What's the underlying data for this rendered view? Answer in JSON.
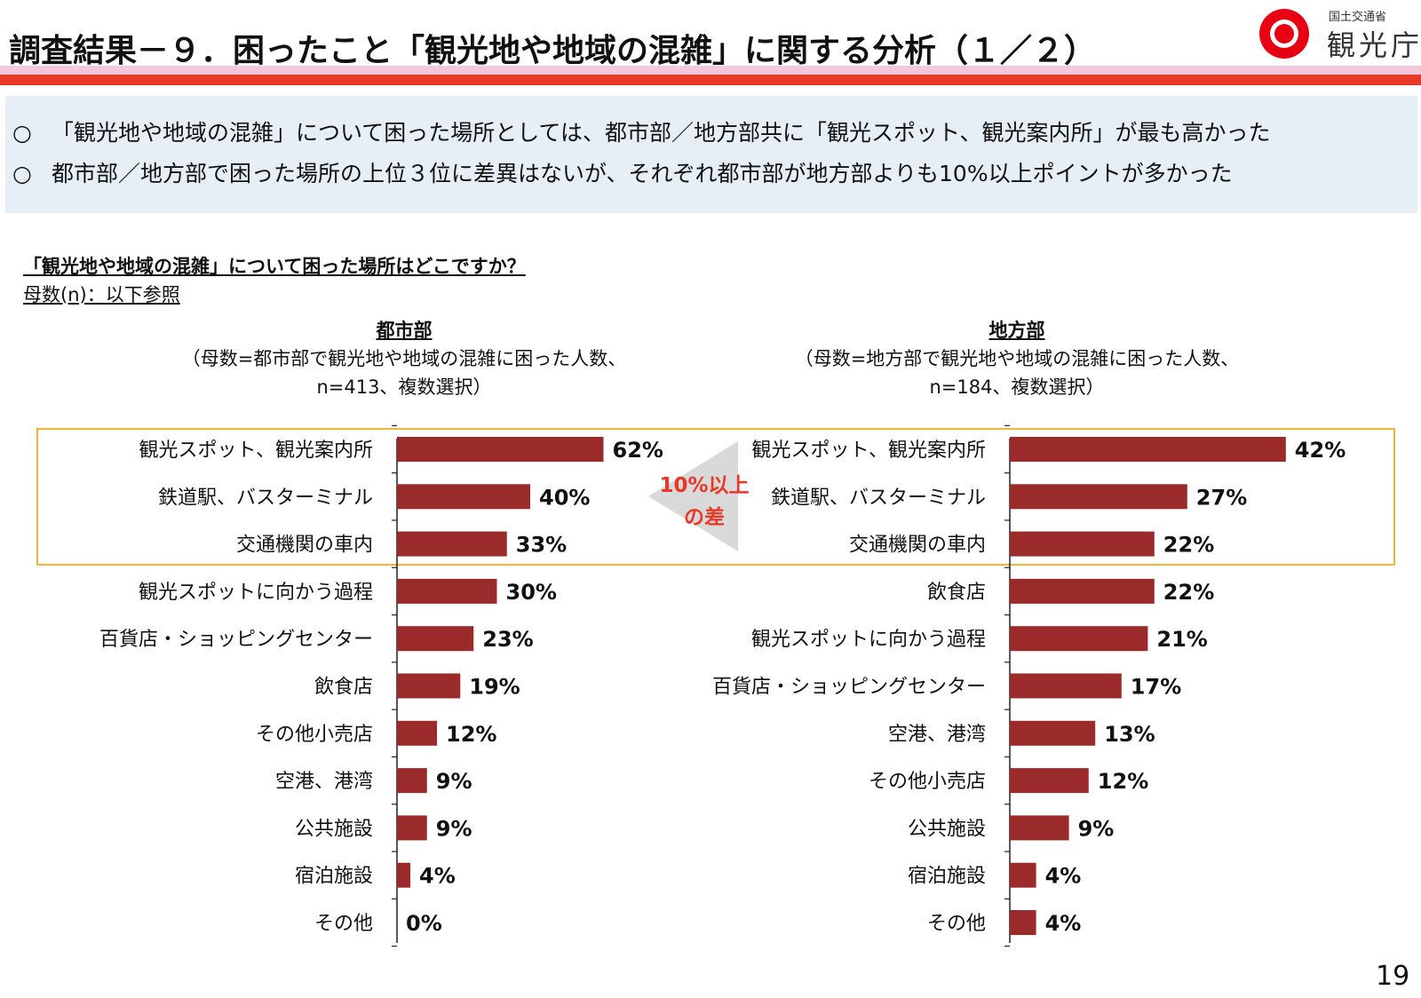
{
  "header": {
    "title": "調査結果－９．困ったこと「観光地や地域の混雑」に関する分析（１／２）",
    "logo": {
      "ministry": "国土交通省",
      "name": "観光庁",
      "icon": "japan-tourism-agency-logo-icon"
    }
  },
  "summary": {
    "bullet": "○",
    "lines": [
      "「観光地や地域の混雑」について困った場所としては、都市部／地方部共に「観光スポット、観光案内所」が最も高かった",
      "都市部／地方部で困った場所の上位３位に差異はないが、それぞれ都市部が地方部よりも10%以上ポイントが多かった"
    ]
  },
  "question": "「観光地や地域の混雑」について困った場所はどこですか？",
  "base_note": "母数(n)：以下参照",
  "annotation": {
    "line1": "10%以上",
    "line2": "の差"
  },
  "page_number": "19",
  "colors": {
    "bar": "#9b2a2a",
    "highlight": "#f2b535",
    "annotation": "#e83828",
    "arrow": "#d9d9d9",
    "title_bar": "#e83828"
  },
  "chart_data": [
    {
      "type": "bar",
      "orientation": "horizontal",
      "title": "都市部",
      "subtitle_line1": "（母数=都市部で観光地や地域の混雑に困った人数、",
      "subtitle_line2": "n=413、複数選択）",
      "categories": [
        "観光スポット、観光案内所",
        "鉄道駅、バスターミナル",
        "交通機関の車内",
        "観光スポットに向かう過程",
        "百貨店・ショッピングセンター",
        "飲食店",
        "その他小売店",
        "空港、港湾",
        "公共施設",
        "宿泊施設",
        "その他"
      ],
      "values": [
        62,
        40,
        33,
        30,
        23,
        19,
        12,
        9,
        9,
        4,
        0
      ],
      "value_labels": [
        "62%",
        "40%",
        "33%",
        "30%",
        "23%",
        "19%",
        "12%",
        "9%",
        "9%",
        "4%",
        "0%"
      ],
      "unit": "%"
    },
    {
      "type": "bar",
      "orientation": "horizontal",
      "title": "地方部",
      "subtitle_line1": "（母数=地方部で観光地や地域の混雑に困った人数、",
      "subtitle_line2": "n=184、複数選択）",
      "categories": [
        "観光スポット、観光案内所",
        "鉄道駅、バスターミナル",
        "交通機関の車内",
        "飲食店",
        "観光スポットに向かう過程",
        "百貨店・ショッピングセンター",
        "空港、港湾",
        "その他小売店",
        "公共施設",
        "宿泊施設",
        "その他"
      ],
      "values": [
        42,
        27,
        22,
        22,
        21,
        17,
        13,
        12,
        9,
        4,
        4
      ],
      "value_labels": [
        "42%",
        "27%",
        "22%",
        "22%",
        "21%",
        "17%",
        "13%",
        "12%",
        "9%",
        "4%",
        "4%"
      ],
      "unit": "%"
    }
  ]
}
